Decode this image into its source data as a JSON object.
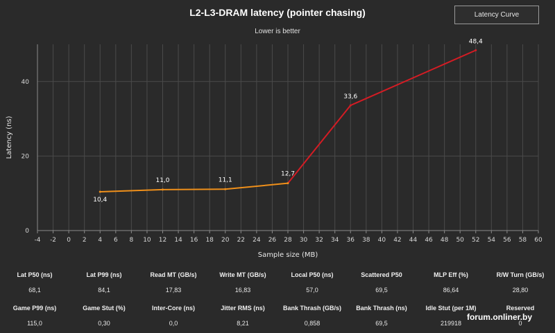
{
  "chart_data": {
    "type": "line",
    "title": "L2-L3-DRAM latency (pointer chasing)",
    "subtitle": "Lower is better",
    "xlabel": "Sample size (MB)",
    "ylabel": "Latency (ns)",
    "xlim": [
      -4,
      60
    ],
    "ylim": [
      0,
      50
    ],
    "x_ticks": [
      "-4",
      "-2",
      "0",
      "2",
      "4",
      "6",
      "8",
      "10",
      "12",
      "14",
      "16",
      "18",
      "20",
      "22",
      "24",
      "26",
      "28",
      "30",
      "32",
      "34",
      "36",
      "38",
      "40",
      "42",
      "44",
      "46",
      "48",
      "50",
      "52",
      "54",
      "56",
      "58",
      "60"
    ],
    "y_ticks": [
      "0",
      "20",
      "40"
    ],
    "grid": true,
    "points": [
      {
        "x": 4,
        "y": 10.4,
        "label": "10,4"
      },
      {
        "x": 12,
        "y": 11.0,
        "label": "11,0"
      },
      {
        "x": 20,
        "y": 11.1,
        "label": "11,1"
      },
      {
        "x": 28,
        "y": 12.7,
        "label": "12,7"
      },
      {
        "x": 36,
        "y": 33.6,
        "label": "33,6"
      },
      {
        "x": 52,
        "y": 48.4,
        "label": "48,4"
      }
    ],
    "segment_colors": {
      "cache": "#f0901a",
      "dram": "#d41c24"
    },
    "cache_split_x": 28
  },
  "button": {
    "label": "Latency Curve"
  },
  "stats": {
    "row1": [
      {
        "label": "Lat P50 (ns)",
        "value": "68,1"
      },
      {
        "label": "Lat P99 (ns)",
        "value": "84,1"
      },
      {
        "label": "Read MT (GB/s)",
        "value": "17,83"
      },
      {
        "label": "Write MT (GB/s)",
        "value": "16,83"
      },
      {
        "label": "Local P50 (ns)",
        "value": "57,0"
      },
      {
        "label": "Scattered P50",
        "value": "69,5"
      },
      {
        "label": "MLP Eff (%)",
        "value": "86,64"
      },
      {
        "label": "R/W Turn (GB/s)",
        "value": "28,80"
      }
    ],
    "row2": [
      {
        "label": "Game P99 (ns)",
        "value": "115,0"
      },
      {
        "label": "Game Stut (%)",
        "value": "0,30"
      },
      {
        "label": "Inter-Core (ns)",
        "value": "0,0"
      },
      {
        "label": "Jitter RMS (ns)",
        "value": "8,21"
      },
      {
        "label": "Bank Thrash (GB/s)",
        "value": "0,858"
      },
      {
        "label": "Bank Thrash (ns)",
        "value": "69,5"
      },
      {
        "label": "Idle Stut (per 1M)",
        "value": "219918"
      },
      {
        "label": "Reserved",
        "value": "0"
      }
    ]
  },
  "watermark": "forum.onliner.by",
  "colors": {
    "background": "#2a2a2a",
    "grid": "#4a4a4a",
    "axis": "#8a8a8a"
  }
}
